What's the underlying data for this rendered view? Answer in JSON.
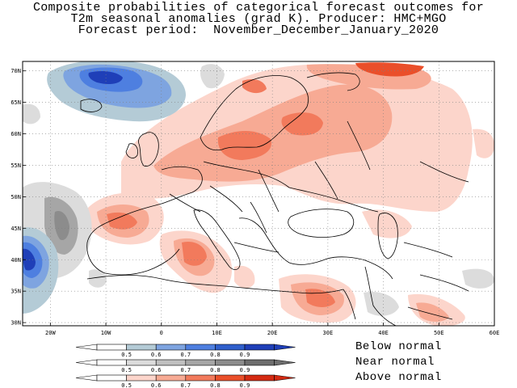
{
  "title": {
    "line1": "Composite probabilities of categorical forecast outcomes for",
    "line2": "T2m seasonal anomalies (grad K). Producer: HMC+MGO",
    "line3": "Forecast period:  November_December_January_2020"
  },
  "map": {
    "lat_ticks": [
      "70N",
      "65N",
      "60N",
      "55N",
      "50N",
      "45N",
      "40N",
      "35N",
      "30N"
    ],
    "lon_ticks": [
      "20W",
      "10W",
      "0",
      "10E",
      "20E",
      "30E",
      "40E",
      "50E",
      "60E"
    ],
    "lat_range": [
      29.5,
      71.5
    ],
    "lon_range": [
      -25,
      60
    ],
    "gridlines": "dotted"
  },
  "legend": {
    "below": {
      "label": "Below normal",
      "ticks": [
        "0.5",
        "0.6",
        "0.7",
        "0.8",
        "0.9"
      ],
      "colors": [
        "#ffffff",
        "#b4cbd6",
        "#7ea4e0",
        "#4e7fe0",
        "#2f5fcc",
        "#1f3fb8"
      ]
    },
    "near": {
      "label": "Near normal",
      "ticks": [
        "0.5",
        "0.6",
        "0.7",
        "0.8",
        "0.9"
      ],
      "colors": [
        "#ffffff",
        "#dcdcdc",
        "#c0c0c0",
        "#a6a6a6",
        "#8c8c8c",
        "#6e6e6e"
      ]
    },
    "above": {
      "label": "Above normal",
      "ticks": [
        "0.5",
        "0.6",
        "0.7",
        "0.8",
        "0.9"
      ],
      "colors": [
        "#ffffff",
        "#fcd5cb",
        "#f7aa94",
        "#f27a5c",
        "#ea4f2a",
        "#d42a12"
      ]
    }
  }
}
